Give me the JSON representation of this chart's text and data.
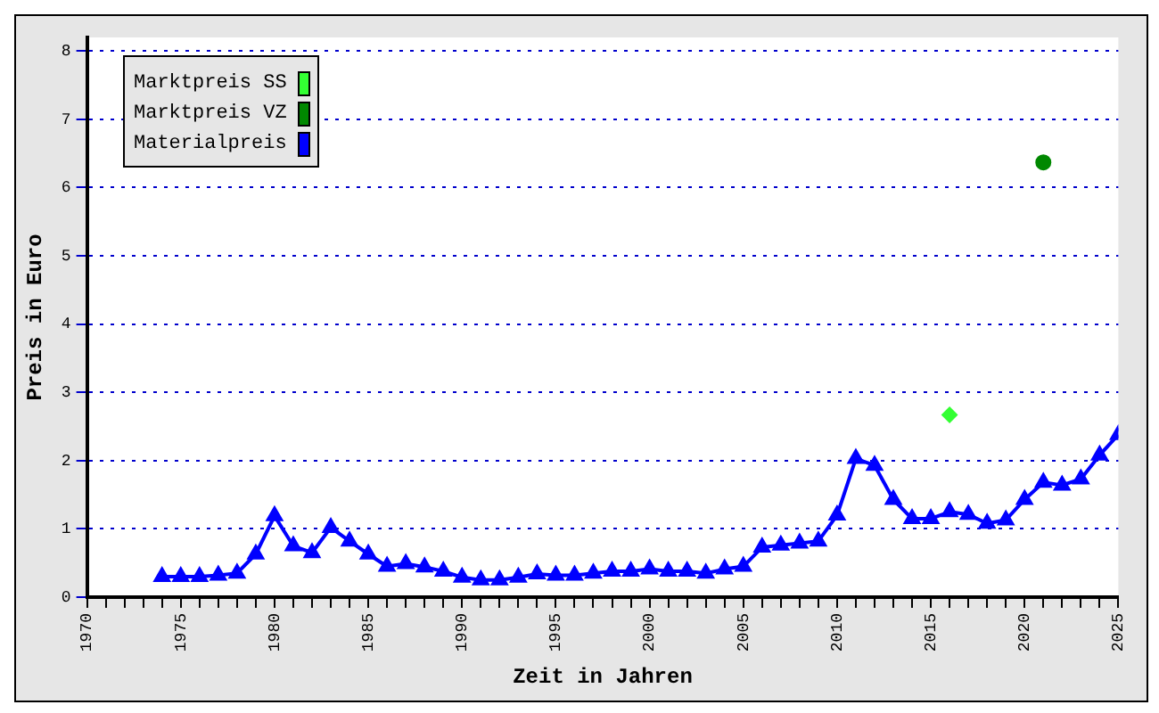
{
  "chart_data": {
    "type": "line",
    "xlabel": "Zeit in Jahren",
    "ylabel": "Preis in Euro",
    "xlim": [
      1970,
      2025
    ],
    "ylim": [
      0,
      8.2
    ],
    "xticks": [
      1970,
      {
        "value": 1971,
        "label": null
      },
      {
        "value": 1972,
        "label": null
      },
      {
        "value": 1973,
        "label": null
      },
      {
        "value": 1974,
        "label": null
      },
      1975,
      {
        "value": 1976,
        "label": null
      },
      {
        "value": 1977,
        "label": null
      },
      {
        "value": 1978,
        "label": null
      },
      {
        "value": 1979,
        "label": null
      },
      1980,
      {
        "value": 1981,
        "label": null
      },
      {
        "value": 1982,
        "label": null
      },
      {
        "value": 1983,
        "label": null
      },
      {
        "value": 1984,
        "label": null
      },
      1985,
      {
        "value": 1986,
        "label": null
      },
      {
        "value": 1987,
        "label": null
      },
      {
        "value": 1988,
        "label": null
      },
      {
        "value": 1989,
        "label": null
      },
      1990,
      {
        "value": 1991,
        "label": null
      },
      {
        "value": 1992,
        "label": null
      },
      {
        "value": 1993,
        "label": null
      },
      {
        "value": 1994,
        "label": null
      },
      1995,
      {
        "value": 1996,
        "label": null
      },
      {
        "value": 1997,
        "label": null
      },
      {
        "value": 1998,
        "label": null
      },
      {
        "value": 1999,
        "label": null
      },
      2000,
      {
        "value": 2001,
        "label": null
      },
      {
        "value": 2002,
        "label": null
      },
      {
        "value": 2003,
        "label": null
      },
      {
        "value": 2004,
        "label": null
      },
      2005,
      {
        "value": 2006,
        "label": null
      },
      {
        "value": 2007,
        "label": null
      },
      {
        "value": 2008,
        "label": null
      },
      {
        "value": 2009,
        "label": null
      },
      2010,
      {
        "value": 2011,
        "label": null
      },
      {
        "value": 2012,
        "label": null
      },
      {
        "value": 2013,
        "label": null
      },
      {
        "value": 2014,
        "label": null
      },
      2015,
      {
        "value": 2016,
        "label": null
      },
      {
        "value": 2017,
        "label": null
      },
      {
        "value": 2018,
        "label": null
      },
      {
        "value": 2019,
        "label": null
      },
      2020,
      {
        "value": 2021,
        "label": null
      },
      {
        "value": 2022,
        "label": null
      },
      {
        "value": 2023,
        "label": null
      },
      {
        "value": 2024,
        "label": null
      },
      2025
    ],
    "yticks": [
      0,
      1,
      2,
      3,
      4,
      5,
      6,
      7,
      8
    ],
    "grid": "y",
    "legend": "top left",
    "line_style": "solid",
    "series": [
      {
        "name": "Marktpreis SS",
        "type": "scatter",
        "color": "#33ff33",
        "marker": "diamond",
        "x": [
          2016
        ],
        "values": [
          2.67
        ]
      },
      {
        "name": "Marktpreis VZ",
        "type": "scatter",
        "color": "#008800",
        "marker": "circle",
        "x": [
          2021
        ],
        "values": [
          6.37
        ]
      },
      {
        "name": "Materialpreis",
        "type": "line",
        "color": "#0000ff",
        "marker": "triangle",
        "x": [
          1974,
          1975,
          1976,
          1977,
          1978,
          1979,
          1980,
          1981,
          1982,
          1983,
          1984,
          1985,
          1986,
          1987,
          1988,
          1989,
          1990,
          1991,
          1992,
          1993,
          1994,
          1995,
          1996,
          1997,
          1998,
          1999,
          2000,
          2001,
          2002,
          2003,
          2004,
          2005,
          2006,
          2007,
          2008,
          2009,
          2010,
          2011,
          2012,
          2013,
          2014,
          2015,
          2016,
          2017,
          2018,
          2019,
          2020,
          2021,
          2022,
          2023,
          2024,
          2025
        ],
        "values": [
          0.3,
          0.3,
          0.3,
          0.32,
          0.35,
          0.63,
          1.19,
          0.75,
          0.65,
          1.02,
          0.82,
          0.63,
          0.45,
          0.49,
          0.44,
          0.38,
          0.29,
          0.25,
          0.25,
          0.29,
          0.34,
          0.32,
          0.32,
          0.35,
          0.38,
          0.38,
          0.41,
          0.38,
          0.38,
          0.35,
          0.41,
          0.45,
          0.73,
          0.76,
          0.79,
          0.82,
          1.2,
          2.03,
          1.93,
          1.43,
          1.15,
          1.15,
          1.25,
          1.21,
          1.08,
          1.13,
          1.43,
          1.68,
          1.64,
          1.73,
          2.08,
          2.38
        ]
      }
    ]
  }
}
